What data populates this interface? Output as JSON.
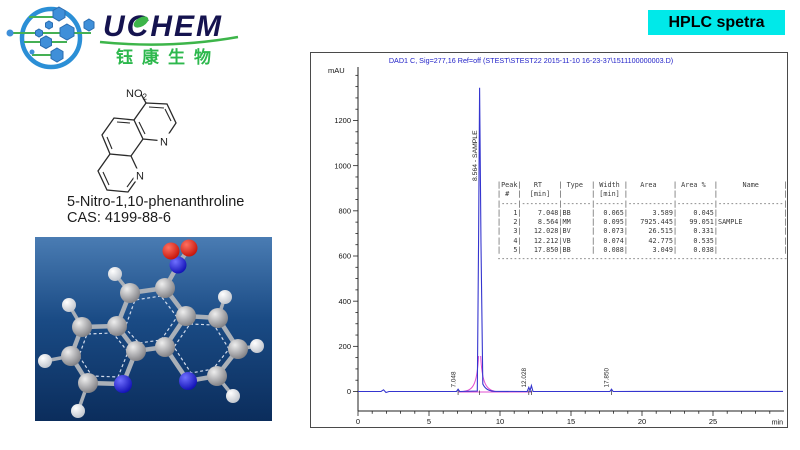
{
  "logo": {
    "brand": "UCHEM",
    "subtitle": "钰康生物"
  },
  "badge": {
    "label": "HPLC spetra"
  },
  "compound": {
    "nitro_label_main": "NO",
    "nitro_label_sub": "2",
    "nitrogen_label": "N",
    "name": "5-Nitro-1,10-phenanthroline",
    "cas": "CAS: 4199-88-6"
  },
  "chromatogram": {
    "y_axis_label": "mAU",
    "x_axis_label": "min",
    "table_header1": [
      "Peak",
      "RT",
      "Type",
      "Width",
      "Area",
      "Area %",
      "Name"
    ],
    "table_header2": [
      "#",
      "[min]",
      "",
      "[min]",
      "",
      "",
      ""
    ]
  },
  "chart_data": {
    "type": "line",
    "title": "DAD1 C, Sig=277,16 Ref=off (STEST\\STEST22 2015-11-10 16-23-37\\1511100000003.D)",
    "xlabel": "min",
    "ylabel": "mAU",
    "xlim": [
      0,
      29
    ],
    "ylim": [
      0,
      1400
    ],
    "x_ticks": [
      0,
      5,
      10,
      15,
      20,
      25
    ],
    "y_ticks": [
      0,
      200,
      400,
      600,
      800,
      1000,
      1200
    ],
    "grid": false,
    "legend": "none",
    "line_color": "#3535cf",
    "integration_color": "#e24fd0",
    "baseline_mAU": 0,
    "peaks": [
      {
        "peak": 1,
        "rt": 7.048,
        "type": "BB",
        "width": 0.065,
        "area": 3.589,
        "area_pct": 0.045,
        "name": "",
        "height_mAU": 10,
        "labeled": true
      },
      {
        "peak": 2,
        "rt": 8.564,
        "type": "MM",
        "width": 0.095,
        "area": 7925.445,
        "area_pct": 99.051,
        "name": "SAMPLE",
        "height_mAU": 1345,
        "labeled": true
      },
      {
        "peak": 3,
        "rt": 12.028,
        "type": "BV",
        "width": 0.073,
        "area": 26.515,
        "area_pct": 0.331,
        "name": "",
        "height_mAU": 18,
        "labeled": true
      },
      {
        "peak": 4,
        "rt": 12.212,
        "type": "VB",
        "width": 0.074,
        "area": 42.775,
        "area_pct": 0.535,
        "name": "",
        "height_mAU": 26,
        "labeled": false
      },
      {
        "peak": 5,
        "rt": 17.85,
        "type": "BB",
        "width": 0.088,
        "area": 3.049,
        "area_pct": 0.038,
        "name": "",
        "height_mAU": 10,
        "labeled": true
      }
    ]
  },
  "accent_colors": {
    "badge_bg": "#00e9e9",
    "title_blue": "#2222c8",
    "logo_green": "#2db84d",
    "logo_navy": "#15134f",
    "molecule_bg_top": "#4a7cb3",
    "molecule_bg_bottom": "#0b2d5c"
  }
}
